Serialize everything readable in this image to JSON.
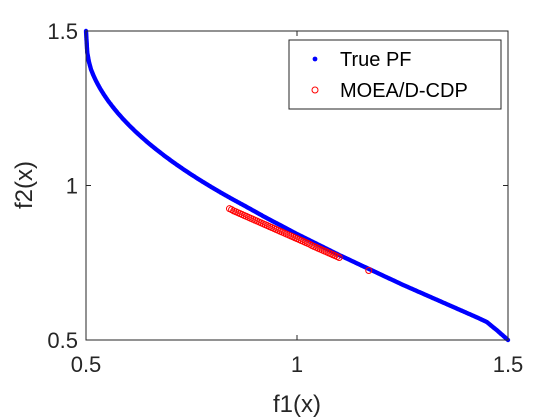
{
  "chart_data": {
    "type": "scatter",
    "title": "",
    "xlabel": "f1(x)",
    "ylabel": "f2(x)",
    "xlim": [
      0.5,
      1.5
    ],
    "ylim": [
      0.5,
      1.5
    ],
    "xticks": [
      0.5,
      1,
      1.5
    ],
    "yticks": [
      0.5,
      1,
      1.5
    ],
    "xtick_labels": [
      "0.5",
      "1",
      "1.5"
    ],
    "ytick_labels": [
      "0.5",
      "1",
      "1.5"
    ],
    "grid": false,
    "legend_position": "top-right",
    "series": [
      {
        "name": "True PF",
        "marker": "dot",
        "color": "#0000ff",
        "x": [
          0.5,
          0.503,
          0.507,
          0.512,
          0.518,
          0.525,
          0.533,
          0.542,
          0.552,
          0.563,
          0.575,
          0.588,
          0.602,
          0.617,
          0.633,
          0.65,
          0.668,
          0.687,
          0.707,
          0.728,
          0.75,
          0.773,
          0.797,
          0.822,
          0.848,
          0.875,
          0.9,
          0.925,
          0.95,
          0.975,
          1.0,
          1.025,
          1.05,
          1.075,
          1.1,
          1.125,
          1.15,
          1.175,
          1.2,
          1.225,
          1.25,
          1.275,
          1.3,
          1.325,
          1.35,
          1.375,
          1.4,
          1.425,
          1.45,
          1.475,
          1.5
        ],
        "y": [
          1.5,
          1.43,
          1.4,
          1.375,
          1.355,
          1.335,
          1.315,
          1.295,
          1.275,
          1.255,
          1.235,
          1.215,
          1.195,
          1.175,
          1.155,
          1.135,
          1.115,
          1.095,
          1.075,
          1.055,
          1.035,
          1.015,
          0.995,
          0.975,
          0.955,
          0.935,
          0.916,
          0.897,
          0.879,
          0.861,
          0.843,
          0.826,
          0.809,
          0.792,
          0.775,
          0.759,
          0.743,
          0.727,
          0.711,
          0.695,
          0.679,
          0.664,
          0.649,
          0.634,
          0.619,
          0.604,
          0.589,
          0.574,
          0.558,
          0.53,
          0.5
        ]
      },
      {
        "name": "MOEA/D-CDP",
        "marker": "circle",
        "color": "#ff0000",
        "x": [
          0.84,
          0.845,
          0.85,
          0.855,
          0.86,
          0.865,
          0.87,
          0.875,
          0.88,
          0.885,
          0.89,
          0.895,
          0.9,
          0.905,
          0.91,
          0.915,
          0.92,
          0.925,
          0.93,
          0.935,
          0.94,
          0.945,
          0.95,
          0.955,
          0.96,
          0.965,
          0.97,
          0.975,
          0.98,
          0.985,
          0.99,
          0.995,
          1.0,
          1.005,
          1.01,
          1.015,
          1.02,
          1.025,
          1.03,
          1.035,
          1.04,
          1.045,
          1.05,
          1.055,
          1.06,
          1.065,
          1.07,
          1.075,
          1.08,
          1.085,
          1.09,
          1.095,
          1.1,
          1.17
        ],
        "y": [
          0.925,
          0.922,
          0.918,
          0.915,
          0.912,
          0.909,
          0.906,
          0.903,
          0.9,
          0.897,
          0.894,
          0.891,
          0.888,
          0.885,
          0.882,
          0.879,
          0.876,
          0.873,
          0.87,
          0.867,
          0.864,
          0.861,
          0.858,
          0.855,
          0.852,
          0.849,
          0.846,
          0.843,
          0.84,
          0.837,
          0.834,
          0.831,
          0.828,
          0.825,
          0.822,
          0.819,
          0.816,
          0.813,
          0.81,
          0.806,
          0.803,
          0.8,
          0.797,
          0.794,
          0.791,
          0.788,
          0.785,
          0.782,
          0.779,
          0.776,
          0.773,
          0.77,
          0.767,
          0.725
        ]
      }
    ]
  },
  "colors": {
    "axis": "#262626",
    "true_pf": "#0000ff",
    "moead": "#ff0000"
  }
}
